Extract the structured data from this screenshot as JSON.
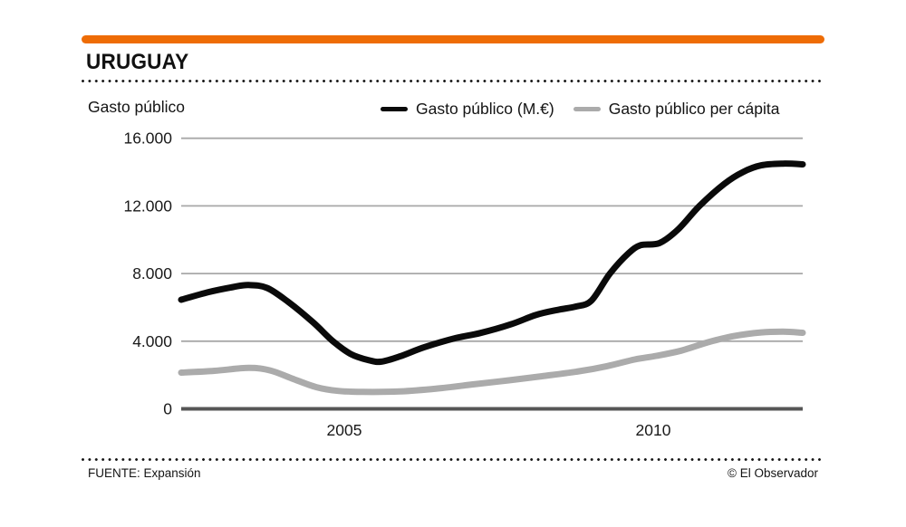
{
  "header": {
    "title": "URUGUAY",
    "accent_color": "#ee6c05"
  },
  "chart_data": {
    "type": "line",
    "axis_title": "Gasto público",
    "ylim": [
      0,
      16000
    ],
    "xlim": [
      2002.36,
      2012.42
    ],
    "grid": true,
    "legend_position": "top",
    "y_ticks": [
      {
        "value": 16000,
        "label": "16.000"
      },
      {
        "value": 12000,
        "label": "12.000"
      },
      {
        "value": 8000,
        "label": "8.000"
      },
      {
        "value": 4000,
        "label": "4.000"
      },
      {
        "value": 0,
        "label": "0"
      }
    ],
    "x_ticks": [
      {
        "year": 2005,
        "label": "2005"
      },
      {
        "year": 2010,
        "label": "2010"
      }
    ],
    "colors": {
      "gridline": "#a8a8a8",
      "baseline": "#565656",
      "tick_text": "#1a1a1a"
    },
    "series": [
      {
        "name": "Gasto público (M.€)",
        "color": "#0a0a0a",
        "points": [
          [
            2002.36,
            6450
          ],
          [
            2002.8,
            6900
          ],
          [
            2003.2,
            7200
          ],
          [
            2003.45,
            7320
          ],
          [
            2003.75,
            7150
          ],
          [
            2004.1,
            6300
          ],
          [
            2004.5,
            5100
          ],
          [
            2004.8,
            4050
          ],
          [
            2005.1,
            3250
          ],
          [
            2005.4,
            2870
          ],
          [
            2005.6,
            2790
          ],
          [
            2005.9,
            3100
          ],
          [
            2006.3,
            3650
          ],
          [
            2006.8,
            4180
          ],
          [
            2007.2,
            4480
          ],
          [
            2007.7,
            5000
          ],
          [
            2008.1,
            5550
          ],
          [
            2008.45,
            5850
          ],
          [
            2008.75,
            6050
          ],
          [
            2009.0,
            6400
          ],
          [
            2009.3,
            8000
          ],
          [
            2009.6,
            9200
          ],
          [
            2009.8,
            9680
          ],
          [
            2010.1,
            9800
          ],
          [
            2010.4,
            10600
          ],
          [
            2010.75,
            12000
          ],
          [
            2011.15,
            13300
          ],
          [
            2011.45,
            14000
          ],
          [
            2011.75,
            14400
          ],
          [
            2012.1,
            14500
          ],
          [
            2012.42,
            14460
          ]
        ]
      },
      {
        "name": "Gasto público per cápita",
        "color": "#ababab",
        "points": [
          [
            2002.36,
            2140
          ],
          [
            2002.9,
            2250
          ],
          [
            2003.45,
            2420
          ],
          [
            2003.8,
            2270
          ],
          [
            2004.15,
            1800
          ],
          [
            2004.55,
            1280
          ],
          [
            2004.9,
            1060
          ],
          [
            2005.3,
            1000
          ],
          [
            2005.9,
            1030
          ],
          [
            2006.5,
            1200
          ],
          [
            2007.1,
            1450
          ],
          [
            2007.65,
            1680
          ],
          [
            2008.2,
            1930
          ],
          [
            2008.8,
            2220
          ],
          [
            2009.25,
            2520
          ],
          [
            2009.7,
            2920
          ],
          [
            2010.05,
            3130
          ],
          [
            2010.45,
            3440
          ],
          [
            2010.9,
            3950
          ],
          [
            2011.3,
            4300
          ],
          [
            2011.75,
            4520
          ],
          [
            2012.1,
            4560
          ],
          [
            2012.42,
            4500
          ]
        ]
      }
    ]
  },
  "footer": {
    "source": "FUENTE: Expansión",
    "credit": "© El Observador"
  }
}
